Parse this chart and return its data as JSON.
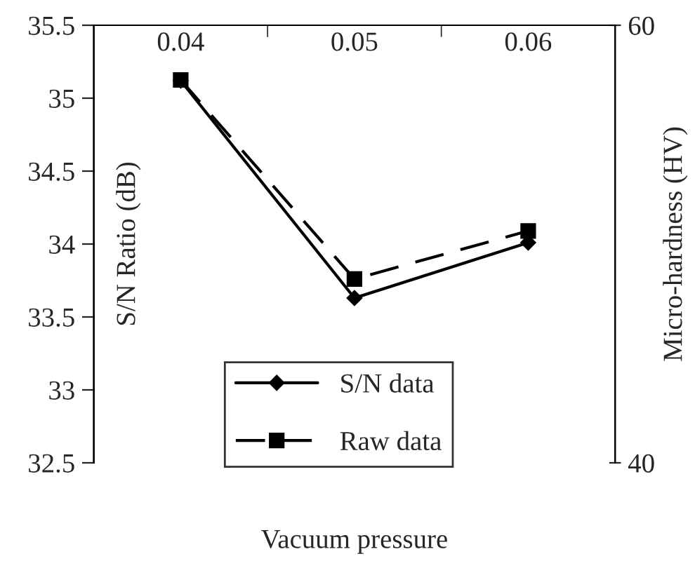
{
  "chart_data": {
    "type": "line",
    "xlabel": "Vacuum pressure",
    "ylabel": "S/N Ratio (dB)",
    "y2label": "Micro-hardness (HV)",
    "categories": [
      "0.04",
      "0.05",
      "0.06"
    ],
    "series": [
      {
        "name": "S/N data",
        "color": "#000000",
        "values": [
          35.12,
          33.63,
          34.01
        ],
        "marker": "diamond",
        "line_style": "solid"
      },
      {
        "name": "Raw data",
        "color": "#000000",
        "values": [
          57.5,
          48.4,
          50.6
        ],
        "axis": "y2",
        "marker": "square",
        "line_style": "dashed"
      }
    ],
    "ylim": [
      32.5,
      35.5
    ],
    "yticks": [
      32.5,
      33,
      33.5,
      34,
      34.5,
      35,
      35.5
    ],
    "y2lim": [
      40,
      60
    ],
    "y2ticks": [
      40,
      60
    ],
    "grid": false,
    "legend": "bottom"
  }
}
